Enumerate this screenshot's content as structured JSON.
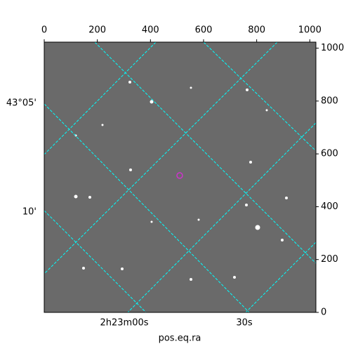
{
  "chart_data": {
    "type": "image",
    "xlabel": "pos.eq.ra",
    "xlim": [
      0,
      1023
    ],
    "ylim": [
      0,
      1023
    ],
    "xticks": [
      0,
      200,
      400,
      600,
      800,
      1000
    ],
    "yticks": [
      0,
      200,
      400,
      600,
      800,
      1000
    ],
    "ra_ticks": [
      "2h23m00s",
      "30s"
    ],
    "dec_ticks": [
      "43°05'",
      "10'"
    ],
    "grid_color": "#00ffff",
    "marker_color": "#cc33cc"
  }
}
